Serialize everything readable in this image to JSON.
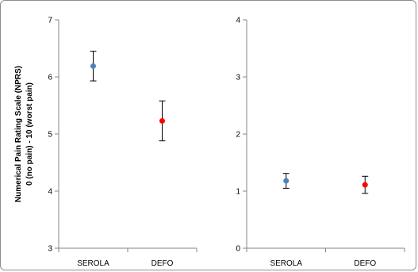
{
  "chart_data": [
    {
      "type": "scatter",
      "categories": [
        "SEROLA",
        "DEFO"
      ],
      "series": [
        {
          "color": "#4f81bd",
          "points": [
            {
              "category": "SEROLA",
              "value": 6.19,
              "error_low": 5.93,
              "error_high": 6.45
            }
          ]
        },
        {
          "color": "#ff0000",
          "points": [
            {
              "category": "DEFO",
              "value": 5.23,
              "error_low": 4.88,
              "error_high": 5.58
            }
          ]
        }
      ],
      "ylabel_line1": "Numerical Pain Rating Scale (NPRS)",
      "ylabel_line2": "0 (no pain) - 10 (worst pain)",
      "ylim": [
        3,
        7
      ],
      "yticks": [
        3,
        4,
        5,
        6,
        7
      ],
      "grid": false
    },
    {
      "type": "scatter",
      "categories": [
        "SEROLA",
        "DEFO"
      ],
      "series": [
        {
          "color": "#4f81bd",
          "points": [
            {
              "category": "SEROLA",
              "value": 1.18,
              "error_low": 1.05,
              "error_high": 1.31
            }
          ]
        },
        {
          "color": "#ff0000",
          "points": [
            {
              "category": "DEFO",
              "value": 1.11,
              "error_low": 0.96,
              "error_high": 1.26
            }
          ]
        }
      ],
      "ylim": [
        0,
        4
      ],
      "yticks": [
        0,
        1,
        2,
        3,
        4
      ],
      "grid": false
    }
  ]
}
